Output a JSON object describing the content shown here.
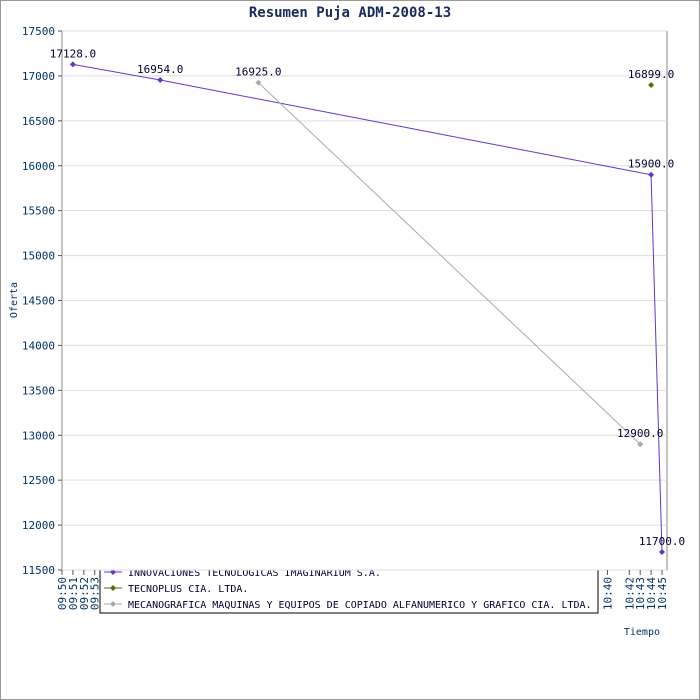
{
  "chart_data": {
    "type": "line",
    "title": "Resumen Puja ADM-2008-13",
    "x_label": "Tiempo",
    "y_label": "Oferta",
    "series": [
      {
        "name": "INNOVACIONES TECNOLOGICAS IMAGINARIUM S.A.",
        "color": "#6633cc",
        "x": [
          "09:51",
          "09:59",
          "10:44",
          "10:45"
        ],
        "values": [
          17128,
          16954,
          15900,
          11700
        ],
        "value_labels": [
          "17128.0",
          "16954.0",
          "15900.0",
          "11700.0"
        ]
      },
      {
        "name": "TECNOPLUS CIA. LTDA.",
        "color": "#666600",
        "x": [
          "10:44"
        ],
        "values": [
          16899
        ],
        "value_labels": [
          "16899.0"
        ]
      },
      {
        "name": "MECANOGRAFICA MAQUINAS Y EQUIPOS DE COPIADO ALFANUMERICO Y GRAFICO CIA. LTDA.",
        "color": "#aaaaaa",
        "x": [
          "10:08",
          "10:43"
        ],
        "values": [
          16925,
          12900
        ],
        "value_labels": [
          "16925.0",
          "12900.0"
        ]
      }
    ],
    "xlim": [
      "09:50",
      "10:45"
    ],
    "xticks": [
      "09:50",
      "09:51",
      "09:52",
      "09:53",
      "10:40",
      "10:42",
      "10:43",
      "10:44",
      "10:45"
    ],
    "ylim": [
      11500,
      17500
    ],
    "yticks": [
      11500,
      12000,
      12500,
      13000,
      13500,
      14000,
      14500,
      15000,
      15500,
      16000,
      16500,
      17000,
      17500
    ],
    "grid": true,
    "legend": "bottom"
  }
}
